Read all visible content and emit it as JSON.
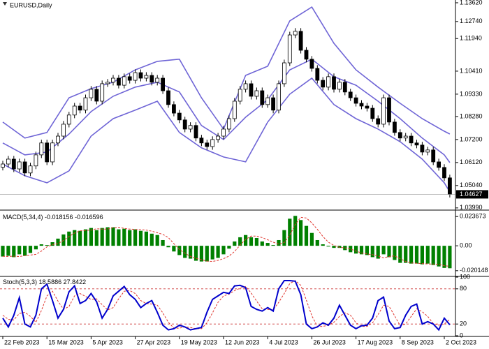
{
  "chart_data": {
    "type": "candlestick",
    "title": "EURUSD,Daily",
    "categories": [
      "22 Feb 2023",
      null,
      null,
      null,
      null,
      null,
      null,
      null,
      "15 Mar 2023",
      null,
      null,
      null,
      null,
      null,
      null,
      null,
      "5 Apr 2023",
      null,
      null,
      null,
      null,
      null,
      null,
      null,
      "27 Apr 2023",
      null,
      null,
      null,
      null,
      null,
      null,
      null,
      "19 May 2023",
      null,
      null,
      null,
      null,
      null,
      null,
      null,
      "12 Jun 2023",
      null,
      null,
      null,
      null,
      null,
      null,
      null,
      "4 Jul 2023",
      null,
      null,
      null,
      null,
      null,
      null,
      null,
      "26 Jul 2023",
      null,
      null,
      null,
      null,
      null,
      null,
      null,
      "17 Aug 2023",
      null,
      null,
      null,
      null,
      null,
      null,
      null,
      "8 Sep 2023",
      null,
      null,
      null,
      null,
      null,
      null,
      null,
      "2 Oct 2023",
      null
    ],
    "open": [
      1.059,
      1.0605,
      1.0628,
      1.0582,
      1.0615,
      1.0563,
      1.0596,
      1.0648,
      1.0704,
      1.0615,
      1.0704,
      1.0736,
      1.0792,
      1.0835,
      1.0877,
      1.0858,
      1.0916,
      1.0956,
      1.09,
      1.0982,
      1.0989,
      1.1008,
      1.0975,
      1.1015,
      1.0998,
      1.1034,
      1.1008,
      1.1021,
      1.0989,
      1.1008,
      1.0949,
      1.0884,
      1.0844,
      1.0812,
      1.0769,
      1.0786,
      1.0727,
      1.0704,
      1.0687,
      1.072,
      1.0736,
      1.0769,
      1.0818,
      1.09,
      1.0956,
      1.0982,
      1.0923,
      1.0949,
      1.0884,
      1.0916,
      1.0858,
      1.0982,
      1.108,
      1.1211,
      1.1228,
      1.1139,
      1.1097,
      1.1054,
      1.0998,
      1.0966,
      1.1015,
      1.0956,
      1.0989,
      1.0943,
      1.0916,
      1.089,
      1.0877,
      1.0867,
      1.0818,
      1.0792,
      1.0916,
      1.0802,
      1.0753,
      1.0727,
      1.0736,
      1.0704,
      1.0694,
      1.0661,
      1.0671,
      1.0615,
      1.0589,
      1.054
    ],
    "high": [
      1.062,
      1.0643,
      1.0643,
      1.063,
      1.063,
      1.0611,
      1.0663,
      1.0719,
      1.0719,
      1.0719,
      1.0751,
      1.0807,
      1.085,
      1.0892,
      1.0892,
      1.0931,
      1.0971,
      1.0971,
      1.0997,
      1.1004,
      1.1023,
      1.1023,
      1.103,
      1.103,
      1.1049,
      1.1049,
      1.1036,
      1.1036,
      1.1023,
      1.1023,
      1.0964,
      1.0899,
      1.0859,
      1.0827,
      1.0801,
      1.0801,
      1.0742,
      1.0719,
      1.0735,
      1.0751,
      1.0784,
      1.0833,
      1.0915,
      1.0971,
      1.0997,
      1.0997,
      1.0964,
      1.0964,
      1.0931,
      1.0931,
      1.0997,
      1.1095,
      1.1226,
      1.1243,
      1.1243,
      1.1154,
      1.1112,
      1.1069,
      1.1013,
      1.103,
      1.103,
      1.1004,
      1.1004,
      1.0958,
      1.0931,
      1.0905,
      1.0892,
      1.0882,
      1.0833,
      1.0931,
      1.0931,
      1.0817,
      1.0768,
      1.0751,
      1.0751,
      1.0719,
      1.0709,
      1.0686,
      1.0686,
      1.063,
      1.0604,
      1.0555
    ],
    "low": [
      1.0575,
      1.059,
      1.0567,
      1.0567,
      1.0548,
      1.0548,
      1.0581,
      1.0633,
      1.06,
      1.06,
      1.0689,
      1.0721,
      1.0777,
      1.082,
      1.0843,
      1.0843,
      1.0901,
      1.0885,
      1.0885,
      1.0967,
      1.0974,
      1.096,
      1.096,
      1.0983,
      1.0983,
      1.0993,
      1.0993,
      1.0974,
      1.0974,
      1.0934,
      1.0869,
      1.0829,
      1.0797,
      1.0754,
      1.0754,
      1.0712,
      1.0689,
      1.0672,
      1.0672,
      1.0705,
      1.0721,
      1.0754,
      1.0803,
      1.0885,
      1.0941,
      1.0908,
      1.0908,
      1.0869,
      1.0869,
      1.0843,
      1.0843,
      1.0967,
      1.1065,
      1.1196,
      1.1124,
      1.1082,
      1.1039,
      1.0983,
      1.0951,
      1.0951,
      1.0941,
      1.0941,
      1.0928,
      1.0901,
      1.0875,
      1.0862,
      1.0852,
      1.0803,
      1.0777,
      1.0777,
      1.0787,
      1.0738,
      1.0712,
      1.0712,
      1.0689,
      1.0679,
      1.0646,
      1.0646,
      1.06,
      1.0574,
      1.0525,
      1.0448
    ],
    "close": [
      1.0605,
      1.0628,
      1.0582,
      1.0615,
      1.0563,
      1.0596,
      1.0648,
      1.0704,
      1.0615,
      1.0704,
      1.0736,
      1.0792,
      1.0835,
      1.0877,
      1.0858,
      1.0916,
      1.0956,
      1.09,
      1.0982,
      1.0989,
      1.1008,
      1.0975,
      1.1015,
      1.0998,
      1.1034,
      1.1008,
      1.1021,
      1.0989,
      1.1008,
      1.0949,
      1.0884,
      1.0844,
      1.0812,
      1.0769,
      1.0786,
      1.0727,
      1.0704,
      1.0687,
      1.072,
      1.0736,
      1.0769,
      1.0818,
      1.09,
      1.0956,
      1.0982,
      1.0923,
      1.0949,
      1.0884,
      1.0916,
      1.0858,
      1.0982,
      1.108,
      1.1211,
      1.1228,
      1.1139,
      1.1097,
      1.1054,
      1.0998,
      1.0966,
      1.1015,
      1.0956,
      1.0989,
      1.0943,
      1.0916,
      1.089,
      1.0877,
      1.0867,
      1.0818,
      1.0792,
      1.0916,
      1.0802,
      1.0753,
      1.0727,
      1.0736,
      1.0704,
      1.0694,
      1.0661,
      1.0671,
      1.0615,
      1.0589,
      1.054,
      1.04627
    ],
    "up_color": "#ffffff",
    "down_color": "#000000",
    "ylim": [
      1.0392,
      1.1375
    ],
    "yticks": [
      {
        "value": 1.1362,
        "label": "1.13620"
      },
      {
        "value": 1.1274,
        "label": "1.12740"
      },
      {
        "value": 1.1194,
        "label": "1.11940"
      },
      {
        "value": 1.1041,
        "label": "1.10410"
      },
      {
        "value": 1.0933,
        "label": "1.09330"
      },
      {
        "value": 1.0828,
        "label": "1.08280"
      },
      {
        "value": 1.072,
        "label": "1.07200"
      },
      {
        "value": 1.0612,
        "label": "1.06120"
      },
      {
        "value": 1.0504,
        "label": "1.05040"
      },
      {
        "value": 1.0399,
        "label": "1.03990"
      }
    ],
    "bands": {
      "color": "#6f65d6",
      "index": [
        0,
        4,
        8,
        12,
        16,
        20,
        24,
        28,
        32,
        36,
        40,
        44,
        48,
        52,
        56,
        60,
        64,
        68,
        72,
        76,
        80,
        81
      ],
      "upper": [
        1.0802,
        1.0727,
        1.0753,
        1.0916,
        1.0959,
        1.0989,
        1.1047,
        1.1087,
        1.1097,
        1.0916,
        1.0769,
        1.1021,
        1.1064,
        1.1277,
        1.1342,
        1.1172,
        1.1047,
        1.0966,
        1.089,
        1.0818,
        1.0759,
        1.0746
      ],
      "middle": [
        1.0704,
        1.0648,
        1.0661,
        1.0746,
        1.0851,
        1.0923,
        1.0966,
        1.0989,
        1.0943,
        1.0786,
        1.072,
        1.0825,
        1.0907,
        1.1047,
        1.1097,
        1.1015,
        1.0975,
        1.09,
        1.0818,
        1.0727,
        1.0648,
        1.0612
      ],
      "lower": [
        1.0605,
        1.055,
        1.0517,
        1.0573,
        1.0736,
        1.0818,
        1.0858,
        1.09,
        1.0753,
        1.0681,
        1.0638,
        1.0615,
        1.0802,
        1.0933,
        1.1008,
        1.0884,
        1.0818,
        1.0769,
        1.071,
        1.0628,
        1.0517,
        1.0474
      ]
    },
    "macd": {
      "type": "bar",
      "title": "MACD(5,34,4)",
      "histogram": {
        "color": "#008000",
        "values": [
          -0.0087,
          -0.0081,
          -0.0092,
          -0.0069,
          -0.0081,
          -0.0058,
          -0.0029,
          0.0012,
          0.0006,
          0.0029,
          0.0058,
          0.0092,
          0.0115,
          0.0127,
          0.0121,
          0.0133,
          0.0144,
          0.0127,
          0.0144,
          0.015,
          0.015,
          0.0133,
          0.0138,
          0.0127,
          0.0133,
          0.0121,
          0.0115,
          0.0098,
          0.0087,
          0.0046,
          -0.0012,
          -0.0046,
          -0.0075,
          -0.0098,
          -0.0104,
          -0.0121,
          -0.0127,
          -0.0127,
          -0.011,
          -0.0098,
          -0.0069,
          -0.0023,
          0.0035,
          0.0069,
          0.0087,
          0.0069,
          0.0063,
          0.0035,
          0.0023,
          0.0006,
          0.0046,
          0.0127,
          0.0219,
          0.0242,
          0.0208,
          0.0161,
          0.0104,
          0.0046,
          0.0012,
          -0.0006,
          -0.0017,
          -0.0017,
          -0.0035,
          -0.0052,
          -0.0063,
          -0.0069,
          -0.0075,
          -0.0092,
          -0.0104,
          -0.0069,
          -0.0092,
          -0.0115,
          -0.0138,
          -0.0138,
          -0.0144,
          -0.0144,
          -0.015,
          -0.0144,
          -0.0156,
          -0.0167,
          -0.0179,
          -0.018156
        ]
      },
      "signal": {
        "color": "#e0342c",
        "values": [
          -0.0085,
          -0.0086,
          -0.0084,
          -0.0087,
          -0.008,
          -0.0075,
          -0.0069,
          -0.0043,
          -0.0009,
          0.0009,
          0.0017,
          0.0043,
          0.0075,
          0.0103,
          0.0121,
          0.0124,
          0.0127,
          0.0138,
          0.0135,
          0.0135,
          0.0147,
          0.015,
          0.0141,
          0.0135,
          0.0132,
          0.013,
          0.0127,
          0.0118,
          0.0106,
          0.0092,
          0.0066,
          0.0017,
          -0.0029,
          -0.006,
          -0.0086,
          -0.0101,
          -0.0112,
          -0.0124,
          -0.0127,
          -0.0118,
          -0.0104,
          -0.0083,
          -0.0046,
          0.0006,
          0.0052,
          0.0078,
          0.0078,
          0.0066,
          0.0049,
          0.0029,
          0.0014,
          0.0026,
          0.0087,
          0.0173,
          0.023,
          0.0225,
          0.0185,
          0.0133,
          0.0075,
          0.0029,
          0.0003,
          -0.0012,
          -0.0017,
          -0.0026,
          -0.0043,
          -0.0058,
          -0.0066,
          -0.0072,
          -0.0083,
          -0.0098,
          -0.0087,
          -0.0081,
          -0.0104,
          -0.0127,
          -0.0138,
          -0.0141,
          -0.0144,
          -0.0147,
          -0.0147,
          -0.015,
          -0.0161,
          -0.016596
        ]
      },
      "ylim": [
        -0.0242,
        0.0283
      ],
      "yticks": [
        0.023673,
        {
          "value": 0,
          "label": "0.00"
        },
        -0.020148
      ]
    },
    "stoch": {
      "type": "line",
      "title": "Stoch(5,3,3)",
      "main": {
        "color": "#0000cc",
        "values": [
          30,
          15,
          35,
          65,
          20,
          15,
          35,
          80,
          88,
          60,
          30,
          45,
          75,
          85,
          55,
          60,
          72,
          58,
          30,
          45,
          68,
          76,
          84,
          70,
          62,
          48,
          55,
          60,
          40,
          18,
          10,
          12,
          18,
          15,
          10,
          12,
          14,
          40,
          62,
          68,
          74,
          72,
          85,
          86,
          82,
          50,
          45,
          42,
          48,
          42,
          80,
          94,
          94,
          93,
          70,
          20,
          12,
          15,
          22,
          18,
          30,
          52,
          35,
          18,
          12,
          17,
          18,
          30,
          60,
          66,
          25,
          12,
          14,
          35,
          50,
          54,
          20,
          24,
          20,
          10,
          30,
          18.5886
        ]
      },
      "signal": {
        "color": "#e0342c",
        "values": [
          35,
          28,
          27,
          38,
          40,
          33,
          23,
          43,
          68,
          76,
          59,
          45,
          50,
          68,
          72,
          67,
          62,
          63,
          53,
          44,
          48,
          63,
          76,
          77,
          72,
          60,
          55,
          54,
          52,
          39,
          23,
          13,
          13,
          15,
          14,
          12,
          12,
          22,
          39,
          57,
          68,
          71,
          77,
          81,
          84,
          73,
          59,
          46,
          45,
          44,
          57,
          72,
          89,
          94,
          86,
          61,
          34,
          16,
          16,
          18,
          23,
          33,
          39,
          35,
          22,
          16,
          16,
          22,
          36,
          52,
          50,
          34,
          17,
          20,
          33,
          46,
          41,
          33,
          21,
          18,
          20,
          27.8422
        ]
      },
      "ylim": [
        0,
        100
      ],
      "yticks": [
        100,
        80,
        20,
        0
      ],
      "levels": [
        80,
        20
      ]
    }
  }
}
